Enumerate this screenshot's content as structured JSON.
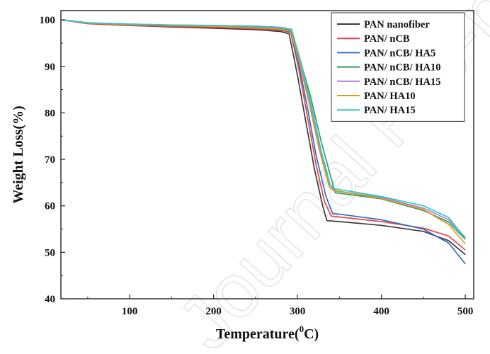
{
  "chart_data": {
    "type": "line",
    "xlabel_main": "Temperature(",
    "xlabel_sup": "0",
    "xlabel_end": "C)",
    "ylabel": "Weight Loss(%)",
    "xlim": [
      18,
      510
    ],
    "ylim": [
      40,
      102
    ],
    "x_ticks": [
      100,
      200,
      300,
      400,
      500
    ],
    "y_ticks": [
      40,
      50,
      60,
      70,
      80,
      90,
      100
    ],
    "grid": false,
    "legend_position": "top-right",
    "watermark": "Journal Pre-proof",
    "series": [
      {
        "name": "PAN nanofiber",
        "color": "#3a3a3a",
        "points": [
          [
            20,
            100
          ],
          [
            50,
            99.2
          ],
          [
            100,
            98.8
          ],
          [
            150,
            98.5
          ],
          [
            200,
            98.2
          ],
          [
            250,
            97.9
          ],
          [
            280,
            97.5
          ],
          [
            290,
            97.0
          ],
          [
            300,
            88
          ],
          [
            310,
            78
          ],
          [
            320,
            68
          ],
          [
            330,
            60
          ],
          [
            335,
            56.8
          ],
          [
            350,
            56.6
          ],
          [
            400,
            55.8
          ],
          [
            450,
            54.5
          ],
          [
            480,
            52.5
          ],
          [
            500,
            49.5
          ]
        ]
      },
      {
        "name": "PAN/ nCB",
        "color": "#e8434b",
        "points": [
          [
            20,
            100
          ],
          [
            50,
            99.2
          ],
          [
            100,
            98.8
          ],
          [
            150,
            98.6
          ],
          [
            200,
            98.4
          ],
          [
            250,
            98.1
          ],
          [
            280,
            97.8
          ],
          [
            292,
            97.3
          ],
          [
            302,
            89
          ],
          [
            312,
            79
          ],
          [
            322,
            69
          ],
          [
            332,
            61
          ],
          [
            340,
            57.8
          ],
          [
            350,
            57.6
          ],
          [
            400,
            56.6
          ],
          [
            450,
            55.2
          ],
          [
            480,
            53.5
          ],
          [
            500,
            50.5
          ]
        ]
      },
      {
        "name": "PAN/ nCB/ HA5",
        "color": "#2f6fc4",
        "points": [
          [
            20,
            100
          ],
          [
            50,
            99.3
          ],
          [
            100,
            99.0
          ],
          [
            150,
            98.8
          ],
          [
            200,
            98.6
          ],
          [
            250,
            98.3
          ],
          [
            280,
            98.0
          ],
          [
            292,
            97.5
          ],
          [
            302,
            90
          ],
          [
            312,
            81
          ],
          [
            322,
            71
          ],
          [
            334,
            62
          ],
          [
            342,
            58.3
          ],
          [
            350,
            58.2
          ],
          [
            400,
            57.0
          ],
          [
            450,
            55.0
          ],
          [
            480,
            52.0
          ],
          [
            500,
            47.5
          ]
        ]
      },
      {
        "name": "PAN/ nCB/ HA10",
        "color": "#2e9e6a",
        "points": [
          [
            20,
            100
          ],
          [
            50,
            99.3
          ],
          [
            100,
            99.0
          ],
          [
            150,
            98.8
          ],
          [
            200,
            98.6
          ],
          [
            250,
            98.4
          ],
          [
            280,
            98.1
          ],
          [
            292,
            97.7
          ],
          [
            302,
            92
          ],
          [
            315,
            84
          ],
          [
            328,
            74
          ],
          [
            340,
            66
          ],
          [
            345,
            62.8
          ],
          [
            350,
            62.7
          ],
          [
            400,
            61.5
          ],
          [
            450,
            59.0
          ],
          [
            480,
            56.5
          ],
          [
            500,
            52.8
          ]
        ]
      },
      {
        "name": "PAN/ nCB/ HA15",
        "color": "#b57ae0",
        "points": [
          [
            20,
            100
          ],
          [
            50,
            99.4
          ],
          [
            100,
            99.1
          ],
          [
            150,
            98.9
          ],
          [
            200,
            98.8
          ],
          [
            250,
            98.7
          ],
          [
            280,
            98.4
          ],
          [
            293,
            98.0
          ],
          [
            303,
            91
          ],
          [
            315,
            82
          ],
          [
            326,
            73
          ],
          [
            337,
            65
          ],
          [
            344,
            63.2
          ],
          [
            350,
            63.1
          ],
          [
            400,
            61.8
          ],
          [
            450,
            59.5
          ],
          [
            480,
            57.0
          ],
          [
            500,
            53.2
          ]
        ]
      },
      {
        "name": "PAN/ HA10",
        "color": "#d99a1e",
        "points": [
          [
            20,
            100
          ],
          [
            50,
            99.3
          ],
          [
            100,
            99.0
          ],
          [
            150,
            98.8
          ],
          [
            200,
            98.6
          ],
          [
            250,
            98.3
          ],
          [
            280,
            98.0
          ],
          [
            292,
            97.6
          ],
          [
            302,
            91
          ],
          [
            314,
            82
          ],
          [
            326,
            72
          ],
          [
            338,
            64
          ],
          [
            344,
            63.2
          ],
          [
            350,
            63.1
          ],
          [
            400,
            61.6
          ],
          [
            450,
            59.2
          ],
          [
            480,
            56.0
          ],
          [
            500,
            51.8
          ]
        ]
      },
      {
        "name": "PAN/ HA15",
        "color": "#2fc7c4",
        "points": [
          [
            20,
            100
          ],
          [
            50,
            99.4
          ],
          [
            100,
            99.1
          ],
          [
            150,
            98.9
          ],
          [
            200,
            98.8
          ],
          [
            250,
            98.6
          ],
          [
            280,
            98.3
          ],
          [
            293,
            97.9
          ],
          [
            304,
            91
          ],
          [
            316,
            82
          ],
          [
            328,
            72
          ],
          [
            339,
            64.5
          ],
          [
            345,
            63.6
          ],
          [
            350,
            63.5
          ],
          [
            400,
            62.0
          ],
          [
            450,
            60.0
          ],
          [
            480,
            57.5
          ],
          [
            500,
            53.0
          ]
        ]
      }
    ]
  }
}
